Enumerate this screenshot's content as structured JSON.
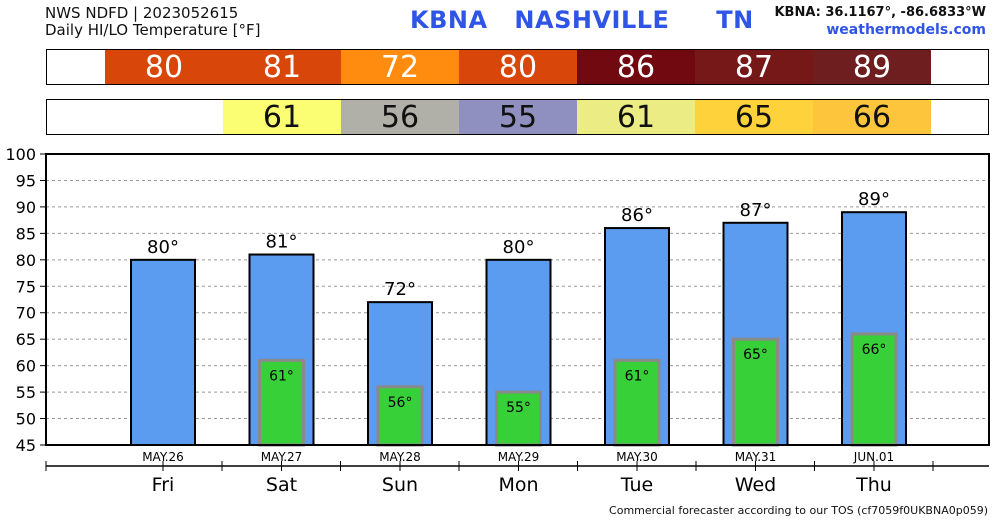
{
  "header": {
    "line1": "NWS NDFD | 2023052615",
    "line2": "Daily HI/LO Temperature [°F]",
    "station_code": "KBNA",
    "station_city": "NASHVILLE",
    "station_state": "TN",
    "coords": "KBNA: 36.1167°, -86.6833°W",
    "site": "weathermodels.com"
  },
  "hi_strip": [
    {
      "value": "80",
      "color": "#d9460a"
    },
    {
      "value": "81",
      "color": "#d9460a"
    },
    {
      "value": "72",
      "color": "#ff8c0f"
    },
    {
      "value": "80",
      "color": "#d9460a"
    },
    {
      "value": "86",
      "color": "#700a10"
    },
    {
      "value": "87",
      "color": "#761818"
    },
    {
      "value": "89",
      "color": "#6e1e1e"
    }
  ],
  "lo_strip": [
    {
      "value": "61",
      "color": "#fbfd73"
    },
    {
      "value": "56",
      "color": "#b0b0a8"
    },
    {
      "value": "55",
      "color": "#9090c0"
    },
    {
      "value": "61",
      "color": "#ecec84"
    },
    {
      "value": "65",
      "color": "#fdd23b"
    },
    {
      "value": "66",
      "color": "#fdc53c"
    }
  ],
  "chart_data": {
    "type": "bar",
    "categories": [
      "Fri",
      "Sat",
      "Sun",
      "Mon",
      "Tue",
      "Wed",
      "Thu"
    ],
    "dates": [
      "MAY.26",
      "MAY.27",
      "MAY.28",
      "MAY.29",
      "MAY.30",
      "MAY.31",
      "JUN.01"
    ],
    "series": [
      {
        "values": [
          80,
          81,
          72,
          80,
          86,
          87,
          89
        ],
        "color": "#5b9bf0"
      },
      {
        "values": [
          null,
          61,
          56,
          55,
          61,
          65,
          66
        ],
        "color": "#38d038"
      }
    ],
    "hi_labels": [
      "80°",
      "81°",
      "72°",
      "80°",
      "86°",
      "87°",
      "89°"
    ],
    "lo_labels": [
      "",
      "61°",
      "56°",
      "55°",
      "61°",
      "65°",
      "66°"
    ],
    "ylim": [
      45,
      100
    ],
    "yticks": [
      45,
      50,
      55,
      60,
      65,
      70,
      75,
      80,
      85,
      90,
      95,
      100
    ],
    "grid": true
  },
  "footer": "Commercial forecaster according to our TOS (cf7059f0UKBNA0p059)"
}
